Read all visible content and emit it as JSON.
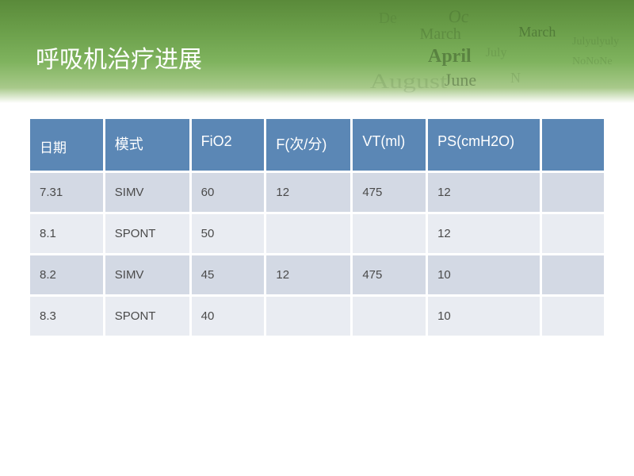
{
  "title": "呼吸机治疗进展",
  "banner": {
    "bg_gradient_colors": [
      "#5a8a3a",
      "#6b9f4a",
      "#7fb35e",
      "#a8c98a",
      "#ffffff"
    ],
    "decor_words": [
      "Oc",
      "March",
      "March",
      "April",
      "July",
      "June",
      "August",
      "De",
      "Julyulyuly",
      "NoNoNe",
      "N"
    ]
  },
  "table": {
    "type": "table",
    "header_bg": "#5b87b5",
    "header_color": "#ffffff",
    "row_bg_a": "#d3d9e4",
    "row_bg_b": "#e9ecf2",
    "text_color": "#4a4a4a",
    "header_fontsize": 18,
    "cell_fontsize": 15,
    "columns": [
      "日期",
      "模式",
      "FiO2",
      "F(次/分)",
      "VT(ml)",
      "PS(cmH2O)",
      ""
    ],
    "column_widths_pct": [
      13,
      15,
      13,
      15,
      13,
      20,
      11
    ],
    "rows": [
      [
        "7.31",
        "SIMV",
        "60",
        "12",
        "475",
        "12",
        ""
      ],
      [
        "8.1",
        "SPONT",
        "50",
        "",
        "",
        "12",
        ""
      ],
      [
        "8.2",
        "SIMV",
        "45",
        "12",
        "475",
        "10",
        ""
      ],
      [
        "8.3",
        "SPONT",
        "40",
        "",
        "",
        "10",
        ""
      ]
    ]
  }
}
